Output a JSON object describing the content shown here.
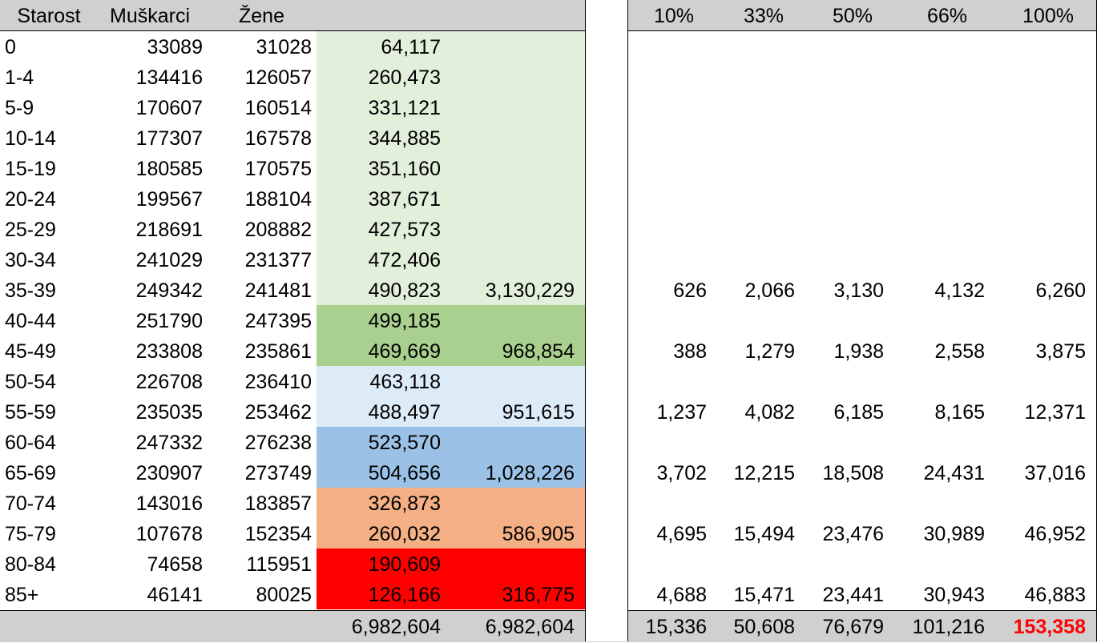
{
  "header": {
    "age": "Starost",
    "men": "Muškarci",
    "women": "Žene",
    "pct": [
      "10%",
      "33%",
      "50%",
      "66%",
      "100%"
    ]
  },
  "rows": [
    {
      "age": "0",
      "men": "33089",
      "women": "31028",
      "sum": "64,117",
      "group": "",
      "p": [
        "",
        "",
        "",
        "",
        ""
      ]
    },
    {
      "age": "1-4",
      "men": "134416",
      "women": "126057",
      "sum": "260,473",
      "group": "",
      "p": [
        "",
        "",
        "",
        "",
        ""
      ]
    },
    {
      "age": "5-9",
      "men": "170607",
      "women": "160514",
      "sum": "331,121",
      "group": "",
      "p": [
        "",
        "",
        "",
        "",
        ""
      ]
    },
    {
      "age": "10-14",
      "men": "177307",
      "women": "167578",
      "sum": "344,885",
      "group": "",
      "p": [
        "",
        "",
        "",
        "",
        ""
      ]
    },
    {
      "age": "15-19",
      "men": "180585",
      "women": "170575",
      "sum": "351,160",
      "group": "",
      "p": [
        "",
        "",
        "",
        "",
        ""
      ]
    },
    {
      "age": "20-24",
      "men": "199567",
      "women": "188104",
      "sum": "387,671",
      "group": "",
      "p": [
        "",
        "",
        "",
        "",
        ""
      ]
    },
    {
      "age": "25-29",
      "men": "218691",
      "women": "208882",
      "sum": "427,573",
      "group": "",
      "p": [
        "",
        "",
        "",
        "",
        ""
      ]
    },
    {
      "age": "30-34",
      "men": "241029",
      "women": "231377",
      "sum": "472,406",
      "group": "",
      "p": [
        "",
        "",
        "",
        "",
        ""
      ]
    },
    {
      "age": "35-39",
      "men": "249342",
      "women": "241481",
      "sum": "490,823",
      "group": "3,130,229",
      "p": [
        "626",
        "2,066",
        "3,130",
        "4,132",
        "6,260"
      ]
    },
    {
      "age": "40-44",
      "men": "251790",
      "women": "247395",
      "sum": "499,185",
      "group": "",
      "p": [
        "",
        "",
        "",
        "",
        ""
      ]
    },
    {
      "age": "45-49",
      "men": "233808",
      "women": "235861",
      "sum": "469,669",
      "group": "968,854",
      "p": [
        "388",
        "1,279",
        "1,938",
        "2,558",
        "3,875"
      ]
    },
    {
      "age": "50-54",
      "men": "226708",
      "women": "236410",
      "sum": "463,118",
      "group": "",
      "p": [
        "",
        "",
        "",
        "",
        ""
      ]
    },
    {
      "age": "55-59",
      "men": "235035",
      "women": "253462",
      "sum": "488,497",
      "group": "951,615",
      "p": [
        "1,237",
        "4,082",
        "6,185",
        "8,165",
        "12,371"
      ]
    },
    {
      "age": "60-64",
      "men": "247332",
      "women": "276238",
      "sum": "523,570",
      "group": "",
      "p": [
        "",
        "",
        "",
        "",
        ""
      ]
    },
    {
      "age": "65-69",
      "men": "230907",
      "women": "273749",
      "sum": "504,656",
      "group": "1,028,226",
      "p": [
        "3,702",
        "12,215",
        "18,508",
        "24,431",
        "37,016"
      ]
    },
    {
      "age": "70-74",
      "men": "143016",
      "women": "183857",
      "sum": "326,873",
      "group": "",
      "p": [
        "",
        "",
        "",
        "",
        ""
      ]
    },
    {
      "age": "75-79",
      "men": "107678",
      "women": "152354",
      "sum": "260,032",
      "group": "586,905",
      "p": [
        "4,695",
        "15,494",
        "23,476",
        "30,989",
        "46,952"
      ]
    },
    {
      "age": "80-84",
      "men": "74658",
      "women": "115951",
      "sum": "190,609",
      "group": "",
      "p": [
        "",
        "",
        "",
        "",
        ""
      ]
    },
    {
      "age": "85+",
      "men": "46141",
      "women": "80025",
      "sum": "126,166",
      "group": "316,775",
      "p": [
        "4,688",
        "15,471",
        "23,441",
        "30,943",
        "46,883"
      ]
    }
  ],
  "totals": {
    "sum": "6,982,604",
    "group": "6,982,604",
    "p": [
      "15,336",
      "50,608",
      "76,679",
      "101,216",
      "153,358"
    ]
  },
  "colors": {
    "header_bg": "#d0d0d0",
    "green_light": "#e2efda",
    "green_mid": "#a9d08e",
    "blue_light": "#ddebf7",
    "blue_mid": "#9bc2e6",
    "orange": "#f4b084",
    "red": "#ff0000"
  }
}
